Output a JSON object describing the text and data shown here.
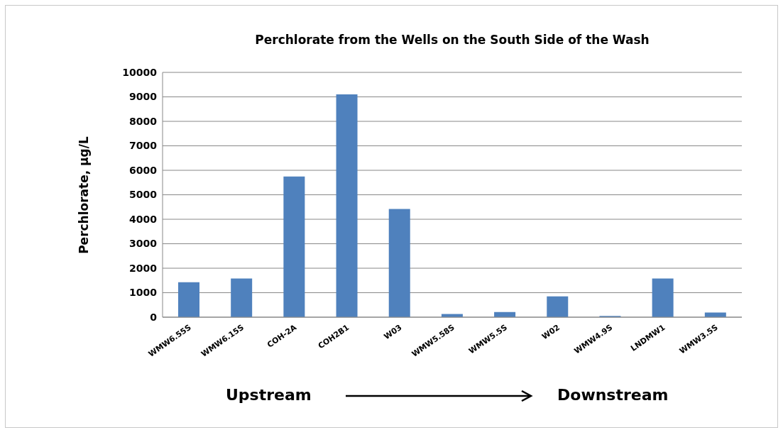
{
  "chart_data": {
    "type": "bar",
    "title": "Perchlorate from the Wells on the South Side of the Wash",
    "ylabel": "Perchlorate, µg/L",
    "categories": [
      "WMW6.55S",
      "WMW6.15S",
      "COH-2A",
      "COH2B1",
      "W03",
      "WMW5.58S",
      "WMW5.5S",
      "W02",
      "WMW4.9S",
      "LNDMW1",
      "WMW3.5S"
    ],
    "values": [
      1430,
      1580,
      5750,
      9100,
      4420,
      130,
      210,
      850,
      50,
      1580,
      190
    ],
    "color": "#4f81bd",
    "ylim": [
      0,
      10000
    ],
    "yticks": [
      0,
      1000,
      2000,
      3000,
      4000,
      5000,
      6000,
      7000,
      8000,
      9000,
      10000
    ],
    "grid": "y",
    "annotations": [
      "Upstream",
      "Downstream"
    ]
  }
}
